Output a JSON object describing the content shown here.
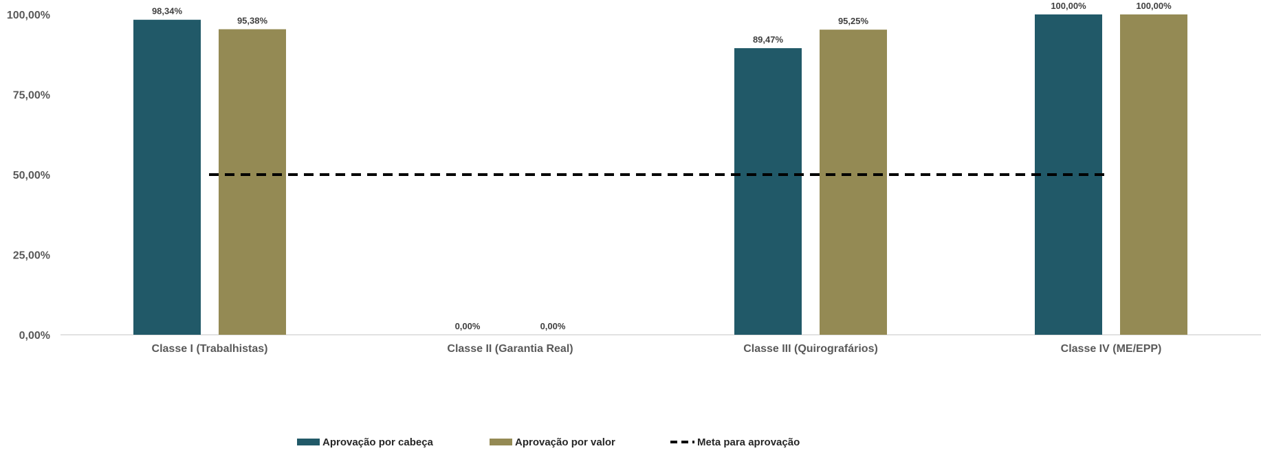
{
  "chart_data": {
    "type": "bar",
    "categories": [
      "Classe I (Trabalhistas)",
      "Classe II (Garantia Real)",
      "Classe III (Quirografários)",
      "Classe IV (ME/EPP)"
    ],
    "series": [
      {
        "name": "Aprovação por cabeça",
        "color": "#215968",
        "values": [
          98.34,
          0,
          89.47,
          100
        ],
        "labels": [
          "98,34%",
          "0,00%",
          "89,47%",
          "100,00%"
        ]
      },
      {
        "name": "Aprovação por valor",
        "color": "#948A54",
        "values": [
          95.38,
          0,
          95.25,
          100
        ],
        "labels": [
          "95,38%",
          "0,00%",
          "95,25%",
          "100,00%"
        ]
      }
    ],
    "target_line": {
      "name": "Meta para aprovação",
      "value": 50,
      "style": "dashed",
      "color": "#000000"
    },
    "yticks": [
      {
        "value": 0,
        "label": "0,00%"
      },
      {
        "value": 25,
        "label": "25,00%"
      },
      {
        "value": 50,
        "label": "50,00%"
      },
      {
        "value": 75,
        "label": "75,00%"
      },
      {
        "value": 100,
        "label": "100,00%"
      }
    ],
    "ylim": [
      0,
      100
    ],
    "grid": false,
    "legend_position": "bottom",
    "title": "",
    "xlabel": "",
    "ylabel": ""
  }
}
